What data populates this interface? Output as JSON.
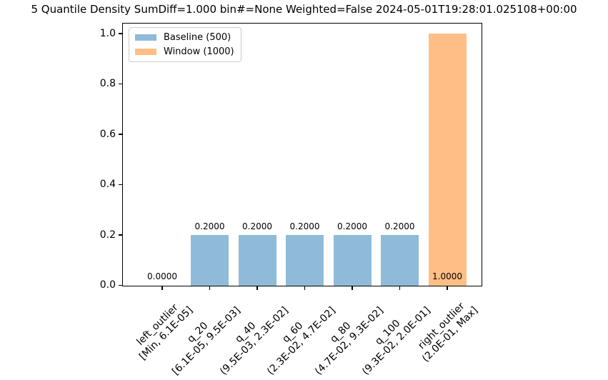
{
  "chart_data": {
    "type": "bar",
    "title": "5 Quantile Density SumDiff=1.000 bin#=None Weighted=False 2024-05-01T19:28:01.025108+00:00",
    "categories": [
      {
        "name": "left_outlier",
        "range": "[Min, 6.1E-05]"
      },
      {
        "name": "q_20",
        "range": "[6.1E-05, 9.5E-03]"
      },
      {
        "name": "q_40",
        "range": "(9.5E-03, 2.3E-02]"
      },
      {
        "name": "q_60",
        "range": "(2.3E-02, 4.7E-02]"
      },
      {
        "name": "q_80",
        "range": "(4.7E-02, 9.3E-02]"
      },
      {
        "name": "q_100",
        "range": "(9.3E-02, 2.0E-01]"
      },
      {
        "name": "right_outlier",
        "range": "(2.0E-01, Max]"
      }
    ],
    "series": [
      {
        "name": "Baseline (500)",
        "color": "#8fbbd9",
        "values": [
          0.0,
          0.2,
          0.2,
          0.2,
          0.2,
          0.2,
          null
        ]
      },
      {
        "name": "Window (1000)",
        "color": "#ffbe86",
        "values": [
          null,
          null,
          null,
          null,
          null,
          null,
          1.0
        ]
      }
    ],
    "bar_value_labels": [
      "0.0000",
      "0.2000",
      "0.2000",
      "0.2000",
      "0.2000",
      "0.2000",
      "1.0000"
    ],
    "bar_label_placement": [
      "base",
      "above",
      "above",
      "above",
      "above",
      "above",
      "base"
    ],
    "xlabel": "",
    "ylabel": "",
    "yticks": [
      "0.0",
      "0.2",
      "0.4",
      "0.6",
      "0.8",
      "1.0"
    ],
    "ylim": [
      0,
      1.04
    ],
    "grid": false,
    "legend_position": "upper left",
    "legend": [
      "Baseline (500)",
      "Window (1000)"
    ]
  }
}
